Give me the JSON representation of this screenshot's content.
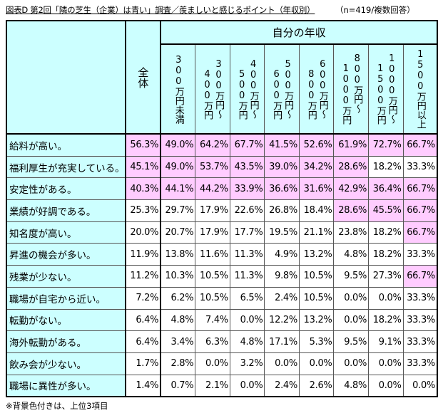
{
  "title": "図表D 第2回「隣の芝生（企業）は青い」調査／羨ましいと感じるポイント（年収別）",
  "sample_note": "（n=419/複数回答）",
  "footnote": "※背景色付きは、上位3項目",
  "header": {
    "total": "全体",
    "group": "自分の年収",
    "columns": [
      {
        "l1": "300万円未満",
        "l2": ""
      },
      {
        "l1": "300万円～",
        "l2": "400万円"
      },
      {
        "l1": "400万円～",
        "l2": "500万円"
      },
      {
        "l1": "500万円～",
        "l2": "600万円"
      },
      {
        "l1": "600万円～",
        "l2": "800万円"
      },
      {
        "l1": "800万円～",
        "l2": "1000万円"
      },
      {
        "l1": "1000万円～",
        "l2": "1500万円"
      },
      {
        "l1": "1500万円以上",
        "l2": ""
      }
    ]
  },
  "highlight_color": "#ffccff",
  "rows": [
    {
      "label": "給料が高い。",
      "values": [
        "56.3%",
        "49.0%",
        "64.2%",
        "67.7%",
        "41.5%",
        "52.6%",
        "61.9%",
        "72.7%",
        "66.7%"
      ],
      "hl": [
        1,
        1,
        1,
        1,
        1,
        1,
        1,
        1,
        1
      ]
    },
    {
      "label": "福利厚生が充実している。",
      "values": [
        "45.1%",
        "49.0%",
        "53.7%",
        "43.5%",
        "39.0%",
        "34.2%",
        "28.6%",
        "18.2%",
        "33.3%"
      ],
      "hl": [
        1,
        1,
        1,
        1,
        1,
        1,
        1,
        0,
        0
      ]
    },
    {
      "label": "安定性がある。",
      "values": [
        "40.3%",
        "44.1%",
        "44.2%",
        "33.9%",
        "36.6%",
        "31.6%",
        "42.9%",
        "36.4%",
        "66.7%"
      ],
      "hl": [
        1,
        1,
        1,
        1,
        1,
        1,
        1,
        1,
        1
      ]
    },
    {
      "label": "業績が好調である。",
      "values": [
        "25.3%",
        "29.7%",
        "17.9%",
        "22.6%",
        "26.8%",
        "18.4%",
        "28.6%",
        "45.5%",
        "66.7%"
      ],
      "hl": [
        0,
        0,
        0,
        0,
        0,
        0,
        1,
        1,
        1
      ]
    },
    {
      "label": "知名度が高い。",
      "values": [
        "20.0%",
        "20.7%",
        "17.9%",
        "17.7%",
        "19.5%",
        "21.1%",
        "23.8%",
        "18.2%",
        "66.7%"
      ],
      "hl": [
        0,
        0,
        0,
        0,
        0,
        0,
        0,
        0,
        1
      ]
    },
    {
      "label": "昇進の機会が多い。",
      "values": [
        "11.9%",
        "13.8%",
        "11.6%",
        "11.3%",
        "4.9%",
        "13.2%",
        "4.8%",
        "18.2%",
        "33.3%"
      ],
      "hl": [
        0,
        0,
        0,
        0,
        0,
        0,
        0,
        0,
        0
      ]
    },
    {
      "label": "残業が少ない。",
      "values": [
        "11.2%",
        "10.3%",
        "10.5%",
        "11.3%",
        "9.8%",
        "10.5%",
        "9.5%",
        "27.3%",
        "66.7%"
      ],
      "hl": [
        0,
        0,
        0,
        0,
        0,
        0,
        0,
        0,
        1
      ]
    },
    {
      "label": "職場が自宅から近い。",
      "values": [
        "7.2%",
        "6.2%",
        "10.5%",
        "6.5%",
        "2.4%",
        "10.5%",
        "0.0%",
        "0.0%",
        "33.3%"
      ],
      "hl": [
        0,
        0,
        0,
        0,
        0,
        0,
        0,
        0,
        0
      ]
    },
    {
      "label": "転勤がない。",
      "values": [
        "6.4%",
        "4.8%",
        "7.4%",
        "0.0%",
        "12.2%",
        "13.2%",
        "0.0%",
        "18.2%",
        "33.3%"
      ],
      "hl": [
        0,
        0,
        0,
        0,
        0,
        0,
        0,
        0,
        0
      ]
    },
    {
      "label": "海外転勤がある。",
      "values": [
        "6.4%",
        "3.4%",
        "6.3%",
        "4.8%",
        "17.1%",
        "5.3%",
        "9.5%",
        "9.1%",
        "33.3%"
      ],
      "hl": [
        0,
        0,
        0,
        0,
        0,
        0,
        0,
        0,
        0
      ]
    },
    {
      "label": "飲み会が少ない。",
      "values": [
        "1.7%",
        "2.8%",
        "0.0%",
        "3.2%",
        "0.0%",
        "0.0%",
        "0.0%",
        "0.0%",
        "33.3%"
      ],
      "hl": [
        0,
        0,
        0,
        0,
        0,
        0,
        0,
        0,
        0
      ]
    },
    {
      "label": "職場に異性が多い。",
      "values": [
        "1.4%",
        "0.7%",
        "2.1%",
        "0.0%",
        "2.4%",
        "2.6%",
        "4.8%",
        "0.0%",
        "0.0%"
      ],
      "hl": [
        0,
        0,
        0,
        0,
        0,
        0,
        0,
        0,
        0
      ]
    }
  ]
}
